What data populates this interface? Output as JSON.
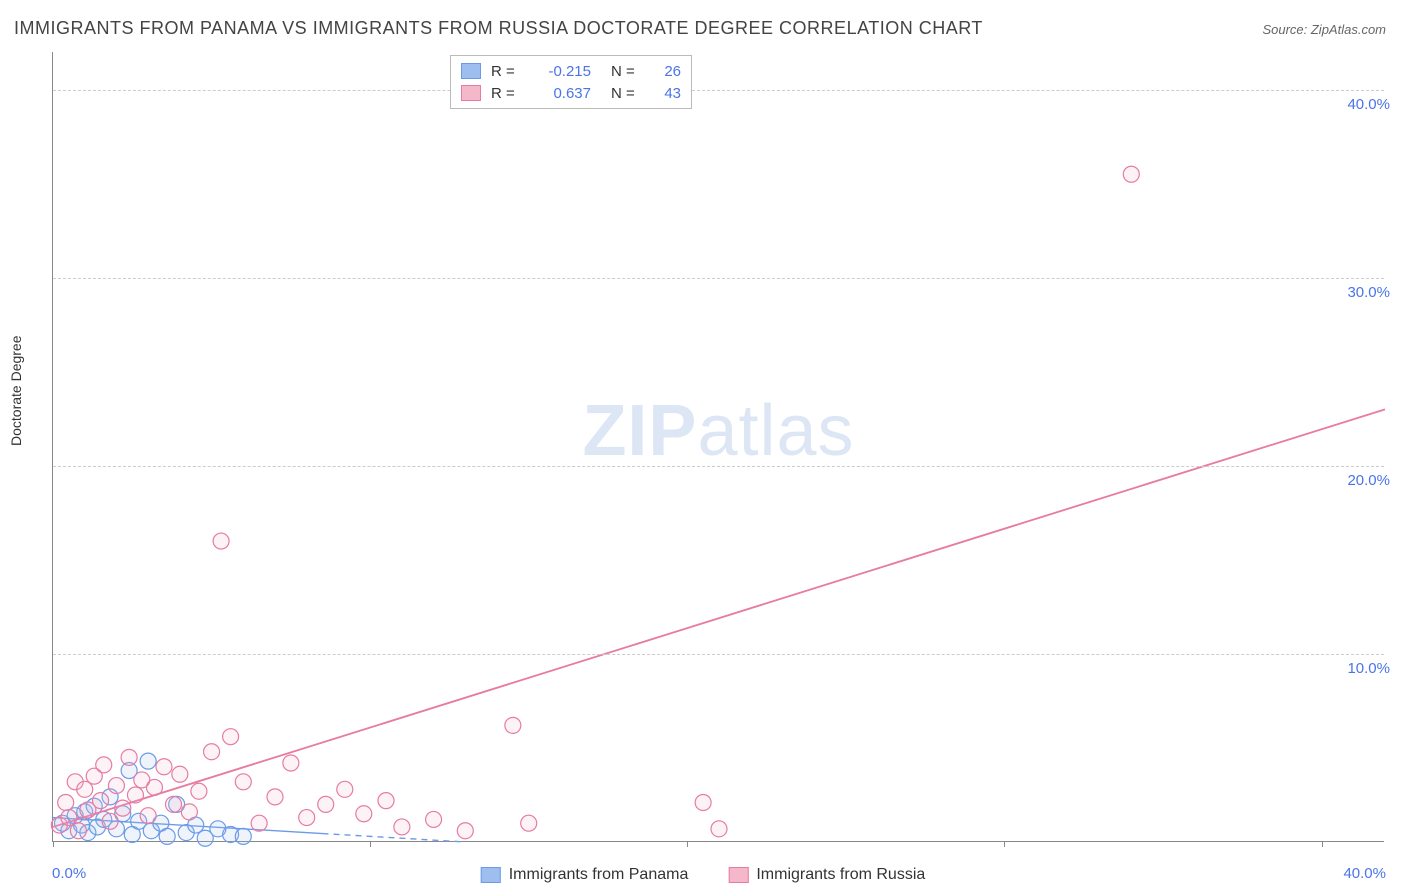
{
  "title": "IMMIGRANTS FROM PANAMA VS IMMIGRANTS FROM RUSSIA DOCTORATE DEGREE CORRELATION CHART",
  "source": "Source: ZipAtlas.com",
  "ylabel": "Doctorate Degree",
  "watermark_a": "ZIP",
  "watermark_b": "atlas",
  "chart": {
    "type": "scatter",
    "xlim": [
      0,
      42
    ],
    "ylim": [
      0,
      42
    ],
    "x_ticks": [
      0,
      10,
      20,
      30,
      40
    ],
    "x_tick_labels": [
      "0.0%",
      "",
      "",
      "",
      "40.0%"
    ],
    "y_ticks": [
      10,
      20,
      30,
      40
    ],
    "y_tick_labels": [
      "10.0%",
      "20.0%",
      "30.0%",
      "40.0%"
    ],
    "grid_color": "#cccccc",
    "axis_color": "#888888",
    "background_color": "#ffffff",
    "marker_radius": 8,
    "marker_fill_opacity": 0.18,
    "marker_stroke_width": 1.2,
    "series": [
      {
        "name": "Immigrants from Panama",
        "color_fill": "#9ebef0",
        "color_stroke": "#6b9be8",
        "R": "-0.215",
        "N": "26",
        "trend": {
          "x1": 0,
          "y1": 1.3,
          "x2": 13,
          "y2": 0.0,
          "dashed": true,
          "width": 1.4,
          "extend_x2": 8.5
        },
        "points": [
          [
            0.3,
            1.0
          ],
          [
            0.5,
            0.6
          ],
          [
            0.7,
            1.4
          ],
          [
            0.9,
            0.9
          ],
          [
            1.0,
            1.6
          ],
          [
            1.1,
            0.5
          ],
          [
            1.3,
            1.9
          ],
          [
            1.4,
            0.8
          ],
          [
            1.6,
            1.2
          ],
          [
            1.8,
            2.4
          ],
          [
            2.0,
            0.7
          ],
          [
            2.2,
            1.5
          ],
          [
            2.4,
            3.8
          ],
          [
            2.5,
            0.4
          ],
          [
            2.7,
            1.1
          ],
          [
            3.0,
            4.3
          ],
          [
            3.1,
            0.6
          ],
          [
            3.4,
            1.0
          ],
          [
            3.6,
            0.3
          ],
          [
            3.9,
            2.0
          ],
          [
            4.2,
            0.5
          ],
          [
            4.5,
            0.9
          ],
          [
            4.8,
            0.2
          ],
          [
            5.2,
            0.7
          ],
          [
            5.6,
            0.4
          ],
          [
            6.0,
            0.3
          ]
        ]
      },
      {
        "name": "Immigrants from Russia",
        "color_fill": "#f5b8cb",
        "color_stroke": "#e77ba3",
        "R": "0.637",
        "N": "43",
        "trend": {
          "x1": 0,
          "y1": 0.8,
          "x2": 42,
          "y2": 23.0,
          "dashed": false,
          "width": 1.8
        },
        "points": [
          [
            0.2,
            0.9
          ],
          [
            0.4,
            2.1
          ],
          [
            0.5,
            1.3
          ],
          [
            0.7,
            3.2
          ],
          [
            0.8,
            0.6
          ],
          [
            1.0,
            2.8
          ],
          [
            1.1,
            1.7
          ],
          [
            1.3,
            3.5
          ],
          [
            1.5,
            2.2
          ],
          [
            1.6,
            4.1
          ],
          [
            1.8,
            1.1
          ],
          [
            2.0,
            3.0
          ],
          [
            2.2,
            1.8
          ],
          [
            2.4,
            4.5
          ],
          [
            2.6,
            2.5
          ],
          [
            2.8,
            3.3
          ],
          [
            3.0,
            1.4
          ],
          [
            3.2,
            2.9
          ],
          [
            3.5,
            4.0
          ],
          [
            3.8,
            2.0
          ],
          [
            4.0,
            3.6
          ],
          [
            4.3,
            1.6
          ],
          [
            4.6,
            2.7
          ],
          [
            5.0,
            4.8
          ],
          [
            5.3,
            16.0
          ],
          [
            5.6,
            5.6
          ],
          [
            6.0,
            3.2
          ],
          [
            6.5,
            1.0
          ],
          [
            7.0,
            2.4
          ],
          [
            7.5,
            4.2
          ],
          [
            8.0,
            1.3
          ],
          [
            8.6,
            2.0
          ],
          [
            9.2,
            2.8
          ],
          [
            9.8,
            1.5
          ],
          [
            10.5,
            2.2
          ],
          [
            11.0,
            0.8
          ],
          [
            12.0,
            1.2
          ],
          [
            13.0,
            0.6
          ],
          [
            14.5,
            6.2
          ],
          [
            15.0,
            1.0
          ],
          [
            20.5,
            2.1
          ],
          [
            21.0,
            0.7
          ],
          [
            34.0,
            35.5
          ]
        ]
      }
    ]
  },
  "legend_top": {
    "r_label": "R =",
    "n_label": "N ="
  },
  "legend_bottom": {
    "items": [
      "Immigrants from Panama",
      "Immigrants from Russia"
    ]
  },
  "colors": {
    "tick_text": "#4a74e8",
    "title_text": "#444444"
  }
}
